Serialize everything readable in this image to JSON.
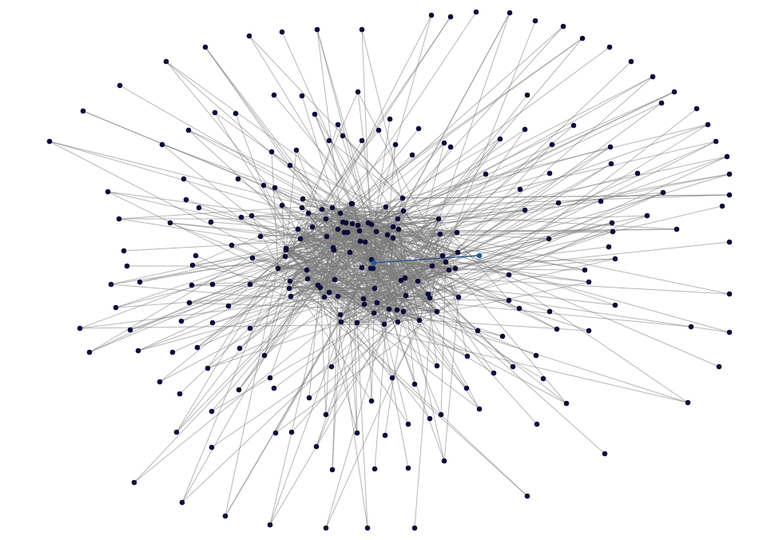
{
  "diagram": {
    "type": "network-graph",
    "colors": {
      "background": "#ffffff",
      "node": "#0b0b3b",
      "edge": "#7a7a7a",
      "highlight_edge": "#1f4f8f",
      "highlight_node": "#1a5c9e"
    }
  }
}
